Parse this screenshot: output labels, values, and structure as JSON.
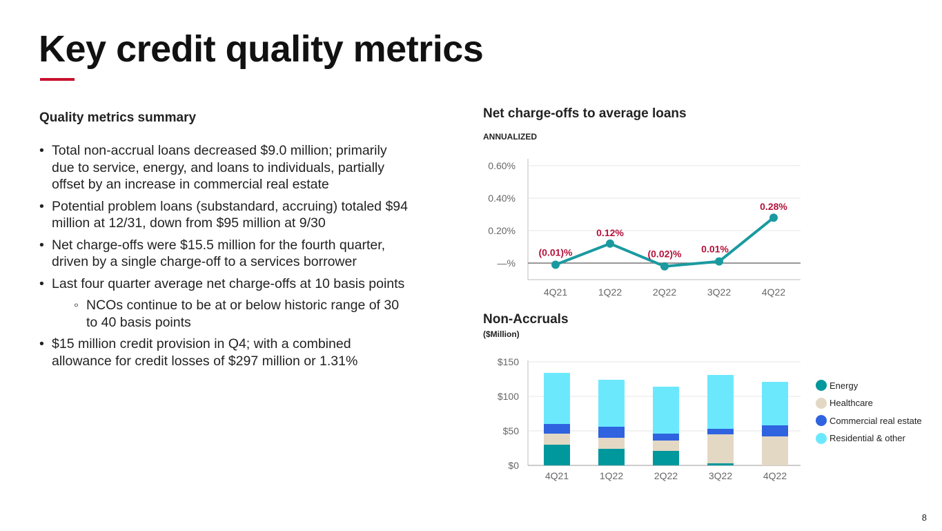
{
  "title": "Key credit quality metrics",
  "summary": {
    "heading": "Quality metrics summary",
    "bullets": [
      "Total non-accrual loans decreased $9.0 million; primarily due to service, energy, and loans to individuals, partially offset by an increase in commercial real estate",
      "Potential problem loans (substandard, accruing) totaled $94 million at 12/31, down from $95 million at 9/30",
      "Net charge-offs were $15.5 million for the fourth quarter, driven by a single charge-off to a services borrower",
      "Last four quarter average net charge-offs at 10 basis points",
      "NCOs continue to be at or below historic range of 30 to 40 basis points",
      "$15 million credit provision in Q4; with a combined allowance for credit losses of $297 million or 1.31%"
    ]
  },
  "page_number": "8",
  "chart_data": [
    {
      "type": "line",
      "title": "Net charge-offs to average loans",
      "subtitle": "ANNUALIZED",
      "categories": [
        "4Q21",
        "1Q22",
        "2Q22",
        "3Q22",
        "4Q22"
      ],
      "values": [
        -0.01,
        0.12,
        -0.02,
        0.01,
        0.28
      ],
      "labels": [
        "(0.01)%",
        "0.12%",
        "(0.02)%",
        "0.01%",
        "0.28%"
      ],
      "yticks": [
        "—%",
        "0.20%",
        "0.40%",
        "0.60%"
      ],
      "ylim": [
        -0.1,
        0.6
      ],
      "color": "#1a9aa0",
      "label_color": "#b5113a"
    },
    {
      "type": "bar",
      "stacked": true,
      "title": "Non-Accruals",
      "subtitle": "($Million)",
      "categories": [
        "4Q21",
        "1Q22",
        "2Q22",
        "3Q22",
        "4Q22"
      ],
      "yticks": [
        "$0",
        "$50",
        "$100",
        "$150"
      ],
      "ylim": [
        0,
        150
      ],
      "legend": "right",
      "series": [
        {
          "name": "Energy",
          "color": "#00979d",
          "values": [
            30,
            24,
            21,
            3,
            0
          ]
        },
        {
          "name": "Healthcare",
          "color": "#e3d8c3",
          "values": [
            16,
            16,
            15,
            42,
            42
          ]
        },
        {
          "name": "Commercial real estate",
          "color": "#2f63e0",
          "values": [
            14,
            16,
            10,
            8,
            16
          ]
        },
        {
          "name": "Residential & other",
          "color": "#6ce8fd",
          "values": [
            74,
            68,
            68,
            78,
            63
          ]
        }
      ]
    }
  ]
}
